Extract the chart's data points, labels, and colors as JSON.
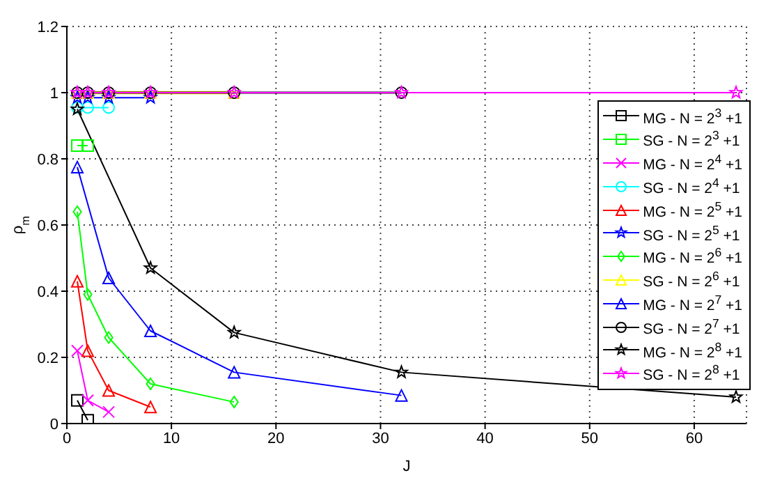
{
  "chart_data": {
    "type": "line",
    "xlabel": "J",
    "ylabel": "ρ$_{m}$",
    "xlim": [
      0,
      65
    ],
    "xticks": [
      0,
      10,
      20,
      30,
      40,
      50,
      60
    ],
    "ylim": [
      0,
      1.2
    ],
    "yticks": [
      0,
      0.2,
      0.4,
      0.6,
      0.8,
      1,
      1.2
    ],
    "grid": true,
    "legend": "right",
    "line_style": "solid",
    "series": [
      {
        "name": "MG - N = 2$^{3}$ +1",
        "color": "#000000",
        "marker": "square",
        "x": [
          1,
          2
        ],
        "values": [
          0.07,
          0.01
        ]
      },
      {
        "name": "SG - N = 2$^{3}$ +1",
        "color": "#00ff00",
        "marker": "square",
        "x": [
          1,
          2
        ],
        "values": [
          0.84,
          0.84
        ]
      },
      {
        "name": "MG - N = 2$^{4}$ +1",
        "color": "#ff00ff",
        "marker": "cross",
        "x": [
          1,
          2,
          4
        ],
        "values": [
          0.22,
          0.07,
          0.035
        ]
      },
      {
        "name": "SG - N = 2$^{4}$ +1",
        "color": "#00ffff",
        "marker": "circle",
        "x": [
          1,
          2,
          4
        ],
        "values": [
          0.955,
          0.955,
          0.955
        ]
      },
      {
        "name": "MG - N = 2$^{5}$ +1",
        "color": "#ff0000",
        "marker": "triangle",
        "x": [
          1,
          2,
          4,
          8
        ],
        "values": [
          0.43,
          0.22,
          0.1,
          0.05
        ]
      },
      {
        "name": "SG - N = 2$^{5}$ +1",
        "color": "#0000ff",
        "marker": "star",
        "x": [
          1,
          2,
          4,
          8
        ],
        "values": [
          0.985,
          0.985,
          0.985,
          0.985
        ]
      },
      {
        "name": "MG - N = 2$^{6}$ +1",
        "color": "#00ff00",
        "marker": "diamond",
        "x": [
          1,
          2,
          4,
          8,
          16
        ],
        "values": [
          0.64,
          0.39,
          0.26,
          0.12,
          0.065
        ]
      },
      {
        "name": "SG - N = 2$^{6}$ +1",
        "color": "#ffff00",
        "marker": "triangle",
        "x": [
          1,
          2,
          4,
          8,
          16
        ],
        "values": [
          1,
          1,
          1,
          1,
          1
        ]
      },
      {
        "name": "MG - N = 2$^{7}$ +1",
        "color": "#0000ff",
        "marker": "triangle",
        "x": [
          1,
          4,
          8,
          16,
          32
        ],
        "values": [
          0.775,
          0.44,
          0.28,
          0.155,
          0.085
        ]
      },
      {
        "name": "SG - N = 2$^{7}$ +1",
        "color": "#000000",
        "marker": "circle",
        "x": [
          1,
          2,
          4,
          8,
          16,
          32
        ],
        "values": [
          1,
          1,
          1,
          1,
          1,
          1
        ]
      },
      {
        "name": "MG - N = 2$^{8}$ +1",
        "color": "#000000",
        "marker": "star",
        "x": [
          1,
          8,
          16,
          32,
          64
        ],
        "values": [
          0.95,
          0.47,
          0.275,
          0.155,
          0.08
        ]
      },
      {
        "name": "SG - N = 2$^{8}$ +1",
        "color": "#ff00ff",
        "marker": "star",
        "x": [
          1,
          2,
          4,
          8,
          16,
          32,
          64
        ],
        "values": [
          1,
          1,
          1,
          1,
          1,
          1,
          1
        ]
      }
    ]
  }
}
